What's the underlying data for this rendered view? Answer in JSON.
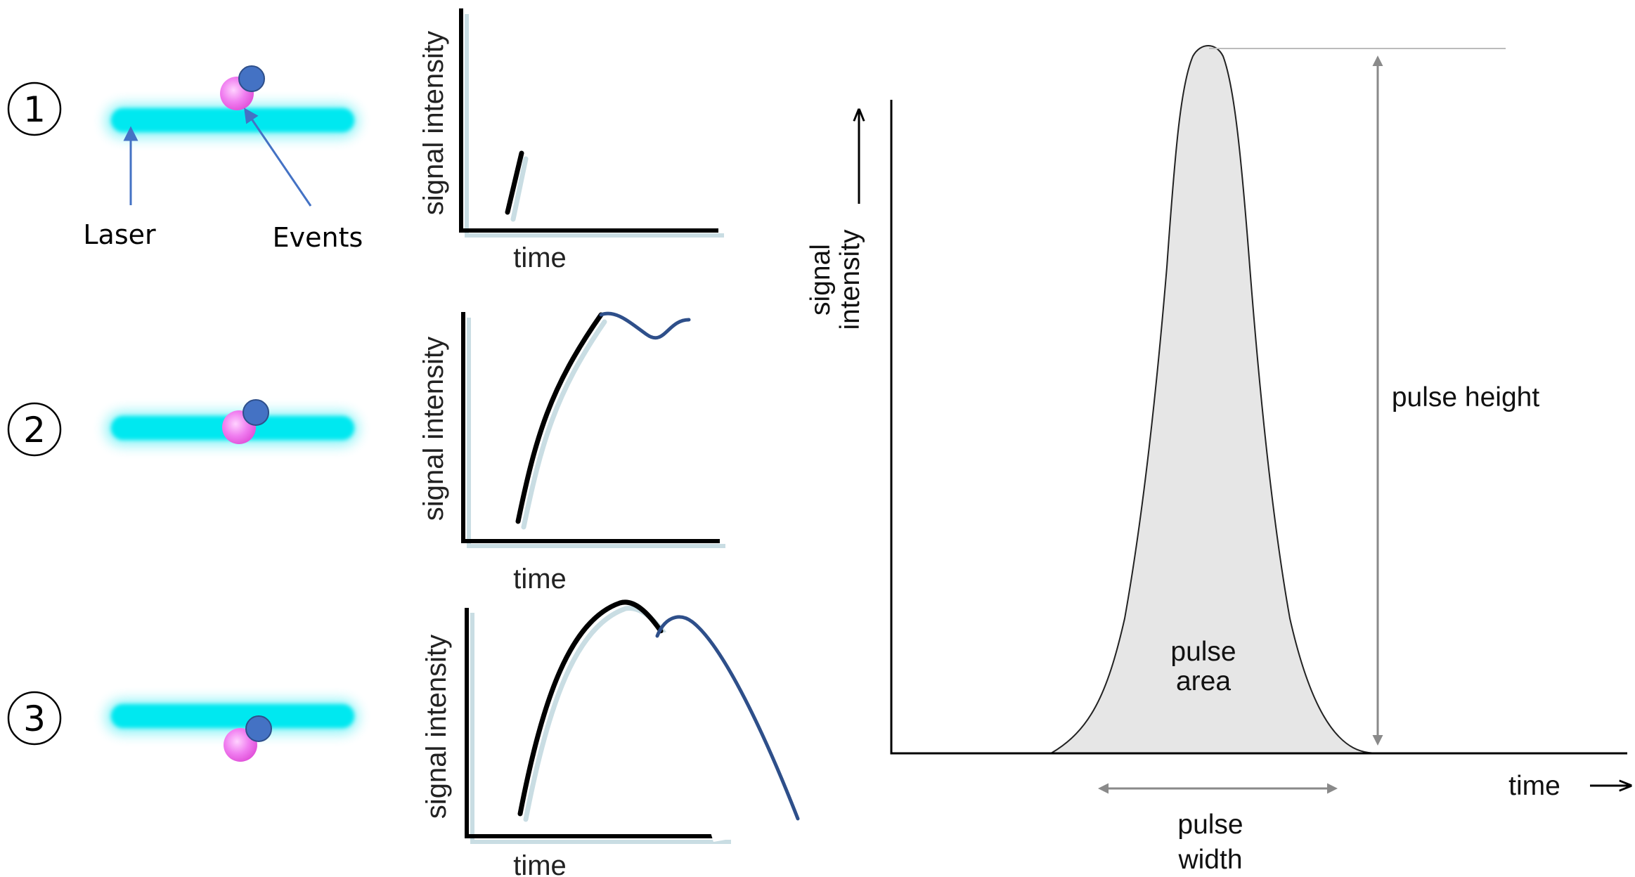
{
  "steps": [
    {
      "number": "1"
    },
    {
      "number": "2"
    },
    {
      "number": "3"
    }
  ],
  "labels": {
    "laser": "Laser",
    "events": "Events"
  },
  "mini_charts": {
    "ylabel": "signal intensity",
    "xlabel": "time"
  },
  "pulse_diagram": {
    "ylabel_line1": "signal",
    "ylabel_line2": "intensity",
    "xlabel": "time",
    "pulse_height": "pulse height",
    "pulse_area_line1": "pulse",
    "pulse_area_line2": "area",
    "pulse_width_line1": "pulse",
    "pulse_width_line2": "width"
  },
  "colors": {
    "laser": "#00e5ee",
    "particle_pink": "#f07ef0",
    "particle_blue": "#4472c4",
    "pulse_fill": "#e6e6e6",
    "arrow_gray": "#8a8a8a"
  }
}
